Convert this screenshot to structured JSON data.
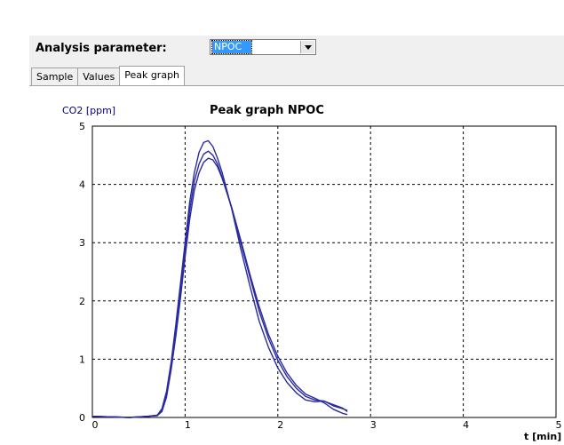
{
  "analysis": {
    "label": "Analysis parameter:",
    "selected": "NPOC"
  },
  "tabs": [
    {
      "label": "Sample",
      "active": false
    },
    {
      "label": "Values",
      "active": false
    },
    {
      "label": "Peak graph",
      "active": true
    }
  ],
  "colors": {
    "curve": "#2a2aa0",
    "axis_label": "#00008b",
    "selection": "#3399ff"
  },
  "chart_data": {
    "type": "line",
    "title": "Peak graph NPOC",
    "ylabel": "CO2 [ppm]",
    "xlabel": "t [min]",
    "xlim": [
      0,
      5
    ],
    "ylim": [
      0,
      5
    ],
    "xticks": [
      "0",
      "1",
      "2",
      "3",
      "4",
      "5"
    ],
    "yticks": [
      "0",
      "1",
      "2",
      "3",
      "4",
      "5"
    ],
    "grid": true,
    "series": [
      {
        "x": [
          0,
          0.2,
          0.4,
          0.6,
          0.7,
          0.75,
          0.8,
          0.85,
          0.9,
          0.95,
          1.0,
          1.05,
          1.1,
          1.15,
          1.2,
          1.25,
          1.3,
          1.35,
          1.4,
          1.5,
          1.6,
          1.7,
          1.8,
          1.9,
          2.0,
          2.1,
          2.2,
          2.3,
          2.4,
          2.5,
          2.6,
          2.7,
          2.75
        ],
        "values": [
          0.02,
          0.01,
          0.0,
          0.02,
          0.04,
          0.15,
          0.45,
          0.95,
          1.6,
          2.3,
          3.0,
          3.7,
          4.2,
          4.55,
          4.72,
          4.75,
          4.65,
          4.45,
          4.2,
          3.6,
          2.9,
          2.25,
          1.65,
          1.2,
          0.85,
          0.6,
          0.42,
          0.3,
          0.27,
          0.28,
          0.2,
          0.15,
          0.12
        ]
      },
      {
        "x": [
          0,
          0.2,
          0.4,
          0.6,
          0.7,
          0.75,
          0.8,
          0.85,
          0.9,
          0.95,
          1.0,
          1.05,
          1.1,
          1.15,
          1.2,
          1.25,
          1.3,
          1.35,
          1.4,
          1.5,
          1.6,
          1.7,
          1.8,
          1.9,
          2.0,
          2.1,
          2.2,
          2.3,
          2.4,
          2.5,
          2.6,
          2.7,
          2.75
        ],
        "values": [
          0.02,
          0.01,
          0.0,
          0.02,
          0.04,
          0.12,
          0.4,
          0.9,
          1.5,
          2.2,
          2.9,
          3.55,
          4.05,
          4.35,
          4.52,
          4.57,
          4.5,
          4.35,
          4.12,
          3.6,
          3.0,
          2.4,
          1.82,
          1.35,
          0.98,
          0.7,
          0.5,
          0.36,
          0.3,
          0.28,
          0.22,
          0.16,
          0.1
        ]
      },
      {
        "x": [
          0,
          0.2,
          0.4,
          0.6,
          0.7,
          0.75,
          0.8,
          0.85,
          0.9,
          0.95,
          1.0,
          1.05,
          1.1,
          1.15,
          1.2,
          1.25,
          1.3,
          1.35,
          1.4,
          1.5,
          1.6,
          1.7,
          1.8,
          1.9,
          2.0,
          2.1,
          2.2,
          2.3,
          2.4,
          2.5,
          2.6,
          2.7,
          2.75
        ],
        "values": [
          0.02,
          0.01,
          0.0,
          0.02,
          0.03,
          0.1,
          0.35,
          0.82,
          1.4,
          2.05,
          2.75,
          3.4,
          3.9,
          4.2,
          4.38,
          4.45,
          4.42,
          4.3,
          4.1,
          3.62,
          3.05,
          2.45,
          1.9,
          1.42,
          1.05,
          0.76,
          0.55,
          0.4,
          0.33,
          0.25,
          0.14,
          0.07,
          0.05
        ]
      }
    ]
  }
}
